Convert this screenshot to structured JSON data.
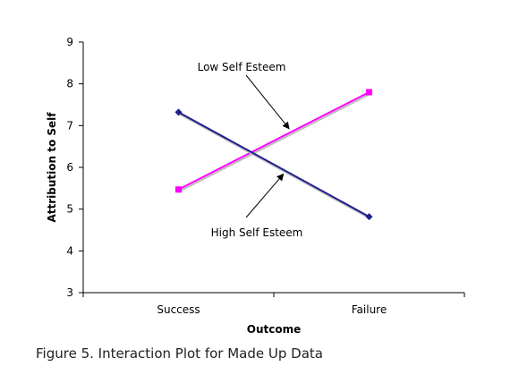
{
  "caption": "Figure 5. Interaction Plot for Made Up Data",
  "chart_data": {
    "type": "line",
    "categories": [
      "Success",
      "Failure"
    ],
    "series": [
      {
        "name": "Low Self Esteem",
        "values": [
          5.47,
          7.8
        ],
        "color": "#ff00ff",
        "marker": "square"
      },
      {
        "name": "High Self Esteem",
        "values": [
          7.32,
          4.82
        ],
        "color": "#1f1f8f",
        "marker": "diamond"
      }
    ],
    "xlabel": "Outcome",
    "ylabel": "Attribution to Self",
    "ylim": [
      3,
      9
    ],
    "yticks": [
      "3",
      "4",
      "5",
      "6",
      "7",
      "8",
      "9"
    ],
    "grid": false,
    "legend": "none",
    "annotations": [
      {
        "text": "Low Self Esteem",
        "series": "Low Self Esteem"
      },
      {
        "text": "High Self Esteem",
        "series": "High Self Esteem"
      }
    ]
  }
}
